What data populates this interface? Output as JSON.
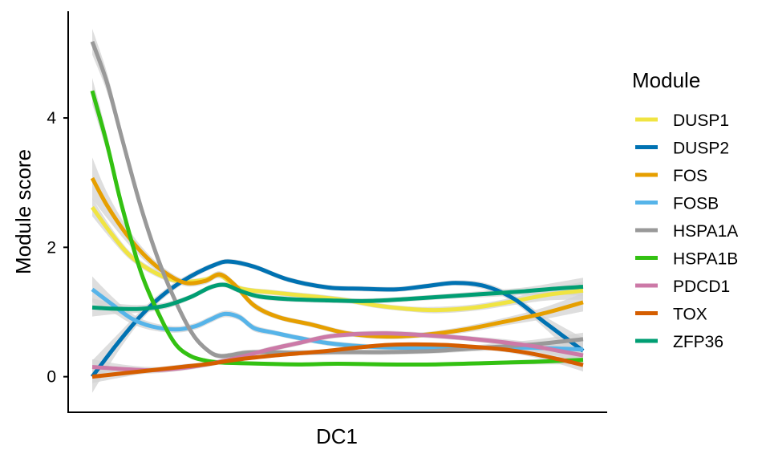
{
  "chart_data": {
    "type": "line",
    "xlabel": "DC1",
    "ylabel": "Module score",
    "xlim": [
      0,
      1
    ],
    "ylim": [
      -0.55,
      5.65
    ],
    "yticks": [
      0,
      2,
      4
    ],
    "ytick_labels": [
      "0",
      "2",
      "4"
    ],
    "x_ticks_shown": false,
    "grid": false,
    "confidence_bands": true,
    "band_color": "#d3d3d3",
    "legend_position": "right",
    "legend_title": "Module",
    "series": [
      {
        "name": "DUSP1",
        "color": "#F0E442",
        "x": [
          0,
          0.04,
          0.08,
          0.13,
          0.18,
          0.23,
          0.26,
          0.3,
          0.37,
          0.45,
          0.52,
          0.58,
          0.64,
          0.7,
          0.78,
          0.86,
          0.93,
          1.0
        ],
        "y": [
          2.62,
          2.2,
          1.85,
          1.6,
          1.47,
          1.5,
          1.57,
          1.37,
          1.3,
          1.24,
          1.18,
          1.1,
          1.05,
          1.03,
          1.07,
          1.17,
          1.27,
          1.33
        ],
        "band": [
          0.14,
          0.09,
          0.06,
          0.05,
          0.04,
          0.04,
          0.05,
          0.04,
          0.04,
          0.04,
          0.04,
          0.04,
          0.04,
          0.05,
          0.05,
          0.06,
          0.09,
          0.14
        ]
      },
      {
        "name": "DUSP2",
        "color": "#0072B2",
        "x": [
          0,
          0.05,
          0.1,
          0.15,
          0.2,
          0.25,
          0.28,
          0.33,
          0.4,
          0.48,
          0.55,
          0.62,
          0.68,
          0.74,
          0.8,
          0.86,
          0.92,
          1.0
        ],
        "y": [
          0.0,
          0.5,
          0.95,
          1.3,
          1.55,
          1.73,
          1.78,
          1.7,
          1.5,
          1.38,
          1.36,
          1.35,
          1.4,
          1.45,
          1.4,
          1.2,
          0.85,
          0.4
        ],
        "band": [
          0.25,
          0.14,
          0.08,
          0.06,
          0.05,
          0.04,
          0.04,
          0.04,
          0.04,
          0.04,
          0.04,
          0.04,
          0.04,
          0.04,
          0.05,
          0.06,
          0.09,
          0.2
        ]
      },
      {
        "name": "FOS",
        "color": "#E69F00",
        "x": [
          0,
          0.03,
          0.07,
          0.11,
          0.15,
          0.19,
          0.23,
          0.26,
          0.29,
          0.33,
          0.38,
          0.45,
          0.52,
          0.6,
          0.68,
          0.76,
          0.84,
          0.92,
          1.0
        ],
        "y": [
          3.07,
          2.65,
          2.2,
          1.85,
          1.6,
          1.45,
          1.48,
          1.58,
          1.42,
          1.1,
          0.92,
          0.8,
          0.67,
          0.62,
          0.65,
          0.73,
          0.85,
          0.98,
          1.15
        ],
        "band": [
          0.32,
          0.2,
          0.12,
          0.08,
          0.06,
          0.05,
          0.05,
          0.05,
          0.05,
          0.05,
          0.04,
          0.04,
          0.04,
          0.04,
          0.04,
          0.05,
          0.06,
          0.09,
          0.14
        ]
      },
      {
        "name": "FOSB",
        "color": "#56B4E9",
        "x": [
          0,
          0.04,
          0.08,
          0.12,
          0.17,
          0.21,
          0.24,
          0.27,
          0.3,
          0.33,
          0.37,
          0.42,
          0.48,
          0.55,
          0.62,
          0.7,
          0.78,
          0.86,
          0.93,
          1.0
        ],
        "y": [
          1.35,
          1.12,
          0.9,
          0.78,
          0.73,
          0.78,
          0.88,
          0.97,
          0.92,
          0.75,
          0.68,
          0.6,
          0.52,
          0.47,
          0.45,
          0.45,
          0.45,
          0.45,
          0.44,
          0.42
        ],
        "band": [
          0.2,
          0.12,
          0.08,
          0.06,
          0.05,
          0.05,
          0.05,
          0.05,
          0.05,
          0.05,
          0.04,
          0.04,
          0.04,
          0.04,
          0.04,
          0.04,
          0.04,
          0.05,
          0.08,
          0.14
        ]
      },
      {
        "name": "HSPA1A",
        "color": "#999999",
        "x": [
          0,
          0.03,
          0.06,
          0.1,
          0.14,
          0.18,
          0.21,
          0.24,
          0.26,
          0.28,
          0.31,
          0.35,
          0.42,
          0.5,
          0.6,
          0.7,
          0.8,
          0.9,
          1.0
        ],
        "y": [
          5.18,
          4.55,
          3.7,
          2.6,
          1.7,
          1.0,
          0.6,
          0.38,
          0.32,
          0.33,
          0.37,
          0.38,
          0.37,
          0.38,
          0.38,
          0.4,
          0.45,
          0.5,
          0.58
        ],
        "band": [
          0.2,
          0.15,
          0.1,
          0.08,
          0.06,
          0.05,
          0.04,
          0.04,
          0.04,
          0.04,
          0.04,
          0.04,
          0.04,
          0.04,
          0.04,
          0.04,
          0.05,
          0.07,
          0.1
        ]
      },
      {
        "name": "HSPA1B",
        "color": "#33C112",
        "x": [
          0,
          0.03,
          0.06,
          0.1,
          0.14,
          0.17,
          0.2,
          0.23,
          0.26,
          0.3,
          0.35,
          0.42,
          0.5,
          0.6,
          0.7,
          0.8,
          0.9,
          1.0
        ],
        "y": [
          4.42,
          3.6,
          2.65,
          1.6,
          0.9,
          0.5,
          0.32,
          0.25,
          0.22,
          0.21,
          0.2,
          0.19,
          0.2,
          0.19,
          0.19,
          0.21,
          0.23,
          0.26
        ],
        "band": [
          0.2,
          0.14,
          0.09,
          0.07,
          0.05,
          0.04,
          0.04,
          0.03,
          0.03,
          0.03,
          0.03,
          0.03,
          0.03,
          0.03,
          0.03,
          0.03,
          0.04,
          0.07
        ]
      },
      {
        "name": "PDCD1",
        "color": "#CC79A7",
        "x": [
          0,
          0.06,
          0.12,
          0.18,
          0.24,
          0.3,
          0.36,
          0.42,
          0.48,
          0.54,
          0.6,
          0.66,
          0.72,
          0.78,
          0.84,
          0.9,
          0.95,
          1.0
        ],
        "y": [
          0.15,
          0.12,
          0.1,
          0.13,
          0.2,
          0.3,
          0.42,
          0.52,
          0.62,
          0.66,
          0.67,
          0.65,
          0.62,
          0.58,
          0.53,
          0.47,
          0.4,
          0.33
        ],
        "band": [
          0.12,
          0.07,
          0.05,
          0.04,
          0.04,
          0.04,
          0.04,
          0.04,
          0.04,
          0.04,
          0.04,
          0.04,
          0.04,
          0.04,
          0.05,
          0.06,
          0.08,
          0.12
        ]
      },
      {
        "name": "TOX",
        "color": "#D55E00",
        "x": [
          0,
          0.06,
          0.12,
          0.18,
          0.24,
          0.3,
          0.36,
          0.42,
          0.48,
          0.54,
          0.6,
          0.66,
          0.72,
          0.78,
          0.84,
          0.9,
          0.95,
          1.0
        ],
        "y": [
          0.0,
          0.05,
          0.1,
          0.15,
          0.2,
          0.27,
          0.32,
          0.36,
          0.4,
          0.45,
          0.49,
          0.5,
          0.49,
          0.46,
          0.42,
          0.35,
          0.27,
          0.18
        ],
        "band": [
          0.1,
          0.06,
          0.04,
          0.04,
          0.03,
          0.03,
          0.03,
          0.03,
          0.03,
          0.03,
          0.03,
          0.03,
          0.03,
          0.03,
          0.04,
          0.05,
          0.07,
          0.1
        ]
      },
      {
        "name": "ZFP36",
        "color": "#009E73",
        "x": [
          0,
          0.05,
          0.1,
          0.15,
          0.2,
          0.24,
          0.27,
          0.3,
          0.34,
          0.4,
          0.48,
          0.56,
          0.64,
          0.72,
          0.8,
          0.88,
          0.94,
          1.0
        ],
        "y": [
          1.07,
          1.05,
          1.05,
          1.1,
          1.23,
          1.38,
          1.42,
          1.33,
          1.24,
          1.2,
          1.18,
          1.17,
          1.2,
          1.24,
          1.28,
          1.32,
          1.36,
          1.39
        ],
        "band": [
          0.14,
          0.08,
          0.06,
          0.05,
          0.04,
          0.04,
          0.04,
          0.04,
          0.04,
          0.04,
          0.04,
          0.04,
          0.04,
          0.04,
          0.05,
          0.06,
          0.09,
          0.14
        ]
      }
    ]
  }
}
